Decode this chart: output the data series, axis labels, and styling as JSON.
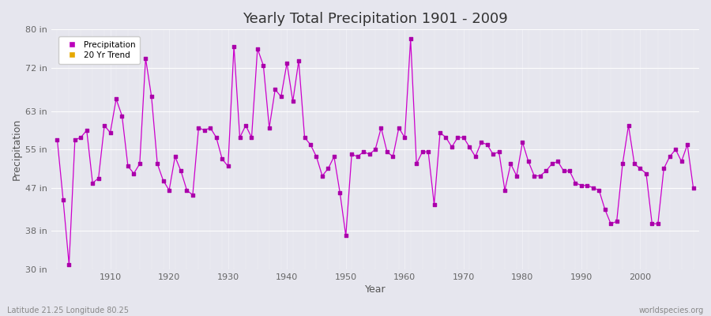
{
  "title": "Yearly Total Precipitation 1901 - 2009",
  "xlabel": "Year",
  "ylabel": "Precipitation",
  "footer_left": "Latitude 21.25 Longitude 80.25",
  "footer_right": "worldspecies.org",
  "legend_labels": [
    "Precipitation",
    "20 Yr Trend"
  ],
  "legend_colors": [
    "#bb00bb",
    "#e6a800"
  ],
  "line_color": "#cc00cc",
  "marker_color": "#aa00aa",
  "bg_color": "#e6e6ee",
  "ylim": [
    30,
    80
  ],
  "yticks": [
    30,
    38,
    47,
    55,
    63,
    72,
    80
  ],
  "ytick_labels": [
    "30 in",
    "38 in",
    "47 in",
    "55 in",
    "63 in",
    "72 in",
    "80 in"
  ],
  "years": [
    1901,
    1902,
    1903,
    1904,
    1905,
    1906,
    1907,
    1908,
    1909,
    1910,
    1911,
    1912,
    1913,
    1914,
    1915,
    1916,
    1917,
    1918,
    1919,
    1920,
    1921,
    1922,
    1923,
    1924,
    1925,
    1926,
    1927,
    1928,
    1929,
    1930,
    1931,
    1932,
    1933,
    1934,
    1935,
    1936,
    1937,
    1938,
    1939,
    1940,
    1941,
    1942,
    1943,
    1944,
    1945,
    1946,
    1947,
    1948,
    1949,
    1950,
    1951,
    1952,
    1953,
    1954,
    1955,
    1956,
    1957,
    1958,
    1959,
    1960,
    1961,
    1962,
    1963,
    1964,
    1965,
    1966,
    1967,
    1968,
    1969,
    1970,
    1971,
    1972,
    1973,
    1974,
    1975,
    1976,
    1977,
    1978,
    1979,
    1980,
    1981,
    1982,
    1983,
    1984,
    1985,
    1986,
    1987,
    1988,
    1989,
    1990,
    1991,
    1992,
    1993,
    1994,
    1995,
    1996,
    1997,
    1998,
    1999,
    2000,
    2001,
    2002,
    2003,
    2004,
    2005,
    2006,
    2007,
    2008,
    2009
  ],
  "precip": [
    57.0,
    44.5,
    31.0,
    57.0,
    57.5,
    59.0,
    48.0,
    49.0,
    60.0,
    58.5,
    65.5,
    62.0,
    51.5,
    50.0,
    52.0,
    74.0,
    66.0,
    52.0,
    48.5,
    46.5,
    53.5,
    50.5,
    46.5,
    45.5,
    59.5,
    59.0,
    59.5,
    57.5,
    53.0,
    51.5,
    76.5,
    57.5,
    60.0,
    57.5,
    76.0,
    72.5,
    59.5,
    67.5,
    66.0,
    73.0,
    65.0,
    73.5,
    57.5,
    56.0,
    53.5,
    49.5,
    51.0,
    53.5,
    46.0,
    37.0,
    54.0,
    53.5,
    54.5,
    54.0,
    55.0,
    59.5,
    54.5,
    53.5,
    59.5,
    57.5,
    78.0,
    52.0,
    54.5,
    54.5,
    43.5,
    58.5,
    57.5,
    55.5,
    57.5,
    57.5,
    55.5,
    53.5,
    56.5,
    56.0,
    54.0,
    54.5,
    46.5,
    52.0,
    49.5,
    56.5,
    52.5,
    49.5,
    49.5,
    50.5,
    52.0,
    52.5,
    50.5,
    50.5,
    48.0,
    47.5,
    47.5,
    47.0,
    46.5,
    42.5,
    39.5,
    40.0,
    52.0,
    60.0,
    52.0,
    51.0,
    50.0,
    39.5,
    39.5,
    51.0,
    53.5,
    55.0,
    52.5,
    56.0,
    47.0
  ]
}
